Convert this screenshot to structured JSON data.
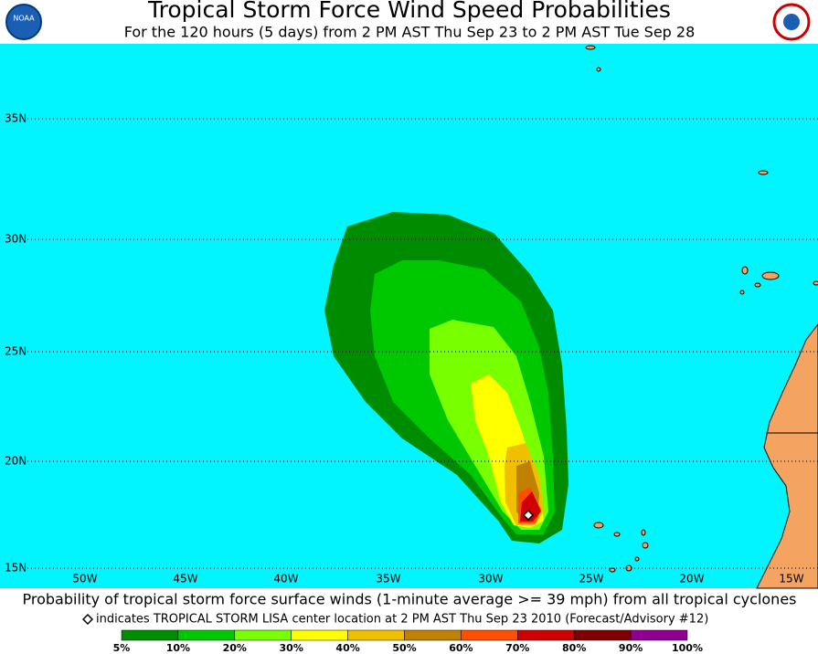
{
  "header": {
    "title": "Tropical Storm Force Wind Speed Probabilities",
    "subtitle": "For the 120 hours (5 days) from 2 PM AST Thu Sep 23 to 2 PM AST Tue Sep 28"
  },
  "map": {
    "lat_labels": [
      "35N",
      "30N",
      "25N",
      "20N",
      "15N"
    ],
    "lon_labels": [
      "50W",
      "45W",
      "40W",
      "35W",
      "30W",
      "25W",
      "20W",
      "15W"
    ]
  },
  "footer": {
    "caption": "Probability of tropical storm force surface winds (1-minute average >= 39 mph) from all tropical cyclones",
    "note": "indicates TROPICAL STORM LISA center location at 2 PM AST Thu Sep 23 2010 (Forecast/Advisory #12)"
  },
  "legend": {
    "colors": [
      "#008c00",
      "#00c800",
      "#78ff00",
      "#ffff00",
      "#f0c000",
      "#c08000",
      "#ff5000",
      "#d00000",
      "#800000",
      "#900090"
    ],
    "labels": [
      "5%",
      "10%",
      "20%",
      "30%",
      "40%",
      "50%",
      "60%",
      "70%",
      "80%",
      "90%",
      "100%"
    ]
  }
}
